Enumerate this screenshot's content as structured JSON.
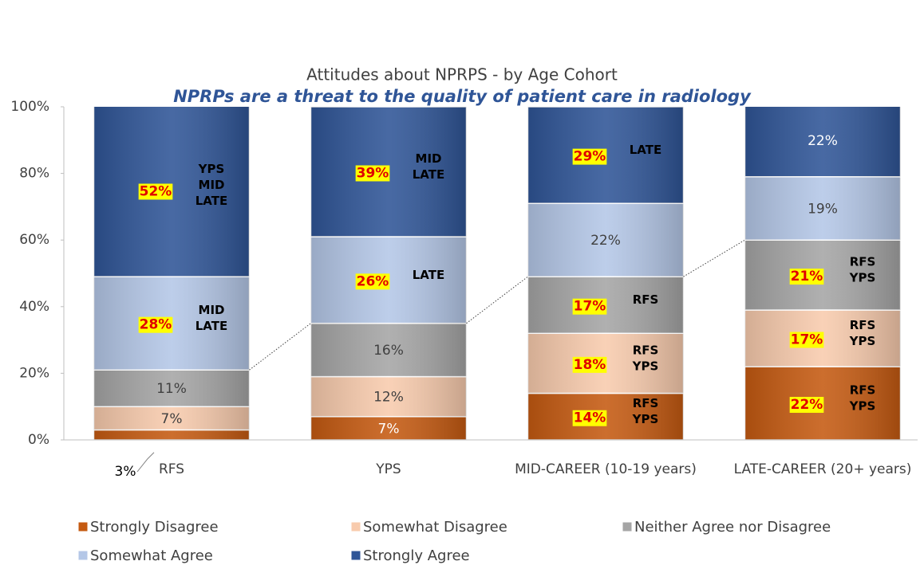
{
  "chart_data": {
    "type": "stacked_bar",
    "title": "Attitudes about NPRPS - by Age Cohort",
    "subtitle": "NPRPs are a threat to the quality of patient care in radiology",
    "categories": [
      "RFS",
      "YPS",
      "MID-CAREER (10-19 years)",
      "LATE-CAREER (20+ years)"
    ],
    "ylim": [
      0,
      100
    ],
    "yticks": [
      {
        "value": 0,
        "label": "0%"
      },
      {
        "value": 20,
        "label": "20%"
      },
      {
        "value": 40,
        "label": "40%"
      },
      {
        "value": 60,
        "label": "60%"
      },
      {
        "value": 80,
        "label": "80%"
      },
      {
        "value": 100,
        "label": "100%"
      }
    ],
    "series": [
      {
        "name": "Strongly Disagree",
        "color": "#c55a11",
        "values": [
          3,
          7,
          14,
          22
        ],
        "value_labels": [
          "3%",
          "7%",
          "14%",
          "22%"
        ],
        "notes": [
          null,
          null,
          [
            "RFS",
            "YPS"
          ],
          [
            "RFS",
            "YPS"
          ]
        ]
      },
      {
        "name": "Somewhat Disagree",
        "color": "#f8cbad",
        "values": [
          7,
          12,
          18,
          17
        ],
        "value_labels": [
          "7%",
          "12%",
          "18%",
          "17%"
        ],
        "notes": [
          null,
          null,
          [
            "RFS",
            "YPS"
          ],
          [
            "RFS",
            "YPS"
          ]
        ]
      },
      {
        "name": "Neither Agree nor Disagree",
        "color": "#a5a5a5",
        "values": [
          11,
          16,
          17,
          21
        ],
        "value_labels": [
          "11%",
          "16%",
          "17%",
          "21%"
        ],
        "notes": [
          null,
          null,
          [
            "RFS"
          ],
          [
            "RFS",
            "YPS"
          ]
        ]
      },
      {
        "name": "Somewhat Agree",
        "color": "#b4c7e7",
        "values": [
          28,
          26,
          22,
          19
        ],
        "value_labels": [
          "28%",
          "26%",
          "22%",
          "19%"
        ],
        "notes": [
          [
            "MID",
            "LATE"
          ],
          [
            "LATE"
          ],
          null,
          null
        ]
      },
      {
        "name": "Strongly Agree",
        "color": "#2f5597",
        "values": [
          52,
          39,
          29,
          22
        ],
        "value_labels": [
          "52%",
          "39%",
          "29%",
          "22%"
        ],
        "notes": [
          [
            "YPS",
            "MID",
            "LATE"
          ],
          [
            "MID",
            "LATE"
          ],
          [
            "LATE"
          ],
          null
        ]
      }
    ]
  }
}
